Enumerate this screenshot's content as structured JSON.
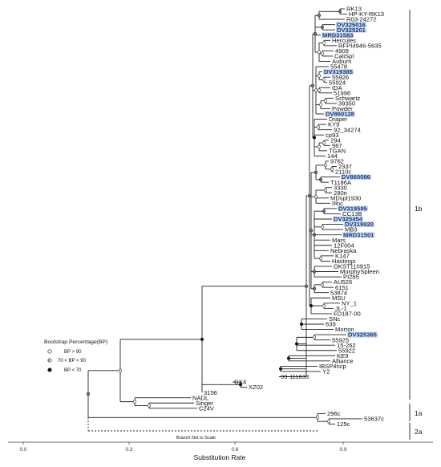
{
  "tree": {
    "tip_labels": [
      "RK13",
      "HP-KY-RK13",
      "R03-24272",
      "DV325016",
      "DV325201",
      "MRD31583",
      "Hercules",
      "RFPI4946-5635",
      "4909",
      "CaliSpl",
      "Auburn",
      "55478",
      "DV319385",
      "55926",
      "55924",
      "IDA",
      "51998",
      "Schwartz",
      "39350",
      "Powder",
      "DV860128",
      "Draper",
      "KY9",
      "92_34274",
      "cp93",
      "294",
      "967",
      "TGAN",
      "144",
      "9762",
      "2337",
      "2110c",
      "DV860086",
      "T1186A",
      "3330",
      "280n",
      "MDspl1930",
      "IIlnc",
      "DV319595",
      "CC13B",
      "DV325454",
      "DV319920",
      "MB3",
      "MRD31501",
      "Mars",
      "12F004",
      "Nebraska",
      "K147",
      "Hastings",
      "OKST110915",
      "MurphySpleen",
      "PI285",
      "AU526",
      "6151",
      "53874",
      "MSU",
      "NY_1",
      "JL-1",
      "FD187-00",
      "SNc",
      "639",
      "Morton",
      "DV325365",
      "55925",
      "15-262",
      "55922",
      "KE9",
      "Alliance",
      "IBSP4ncp",
      "Y2",
      "99-111633",
      "GX4",
      "XZ02",
      "3156",
      "NADL",
      "Singer",
      "C24V",
      "296c",
      "53637c",
      "125c"
    ],
    "highlighted_tips": [
      "DV325016",
      "DV325201",
      "MRD31583",
      "DV319385",
      "DV860128",
      "DV860086",
      "DV319595",
      "DV325454",
      "DV319920",
      "MRD31501",
      "DV325365"
    ],
    "highlight_color": "#c9d9ee",
    "clades": [
      {
        "label": "1b"
      },
      {
        "label": "1a"
      },
      {
        "label": "2a"
      }
    ],
    "scale_break_note": "Branch Not to Scale"
  },
  "legend": {
    "title": "Bootstrap Percentage(BP)",
    "items": [
      {
        "label": "BP > 90",
        "marker": "open-circle"
      },
      {
        "label": "70 < BP < 90",
        "marker": "half-circle"
      },
      {
        "label": "BP < 70",
        "marker": "filled-circle"
      }
    ]
  },
  "axis": {
    "title": "Substitution Rate",
    "ticks": [
      "0.0",
      "0.3",
      "0.6",
      "0.9"
    ]
  }
}
